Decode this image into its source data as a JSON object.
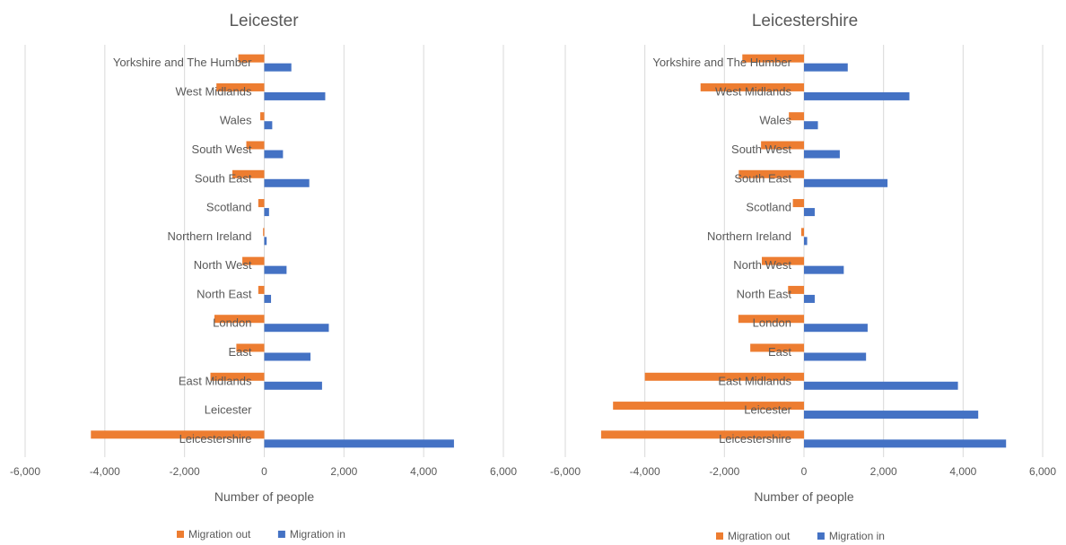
{
  "chart_data": [
    {
      "type": "bar",
      "orientation": "horizontal",
      "title": "Leicester",
      "xlabel": "Number of people",
      "ylabel": "",
      "xlim": [
        -6000,
        6000
      ],
      "xticks": [
        -6000,
        -4000,
        -2000,
        0,
        2000,
        4000,
        6000
      ],
      "xtick_labels": [
        "-6,000",
        "-4,000",
        "-2,000",
        "0",
        "2,000",
        "4,000",
        "6,000"
      ],
      "grid": true,
      "legend_position": "bottom",
      "categories": [
        "Yorkshire and The Humber",
        "West Midlands",
        "Wales",
        "South West",
        "South East",
        "Scotland",
        "Northern Ireland",
        "North West",
        "North East",
        "London",
        "East",
        "East Midlands",
        "Leicester",
        "Leicestershire"
      ],
      "series": [
        {
          "name": "Migration out",
          "color": "#ED7D31",
          "values": [
            -650,
            -1200,
            -100,
            -450,
            -800,
            -150,
            -30,
            -550,
            -150,
            -1250,
            -700,
            -1350,
            0,
            -4350
          ]
        },
        {
          "name": "Migration in",
          "color": "#4472C4",
          "values": [
            680,
            1530,
            200,
            470,
            1130,
            120,
            60,
            560,
            170,
            1620,
            1160,
            1450,
            0,
            4760
          ]
        }
      ]
    },
    {
      "type": "bar",
      "orientation": "horizontal",
      "title": "Leicestershire",
      "xlabel": "Number of people",
      "ylabel": "",
      "xlim": [
        -6000,
        6000
      ],
      "xticks": [
        -6000,
        -4000,
        -2000,
        0,
        2000,
        4000,
        6000
      ],
      "xtick_labels": [
        "-6,000",
        "-4,000",
        "-2,000",
        "0",
        "2,000",
        "4,000",
        "6,000"
      ],
      "grid": true,
      "legend_position": "bottom",
      "categories": [
        "Yorkshire and The Humber",
        "West Midlands",
        "Wales",
        "South West",
        "South East",
        "Scotland",
        "Northern Ireland",
        "North West",
        "North East",
        "London",
        "East",
        "East Midlands",
        "Leicester",
        "Leicestershire"
      ],
      "series": [
        {
          "name": "Migration out",
          "color": "#ED7D31",
          "values": [
            -1550,
            -2600,
            -380,
            -1080,
            -1640,
            -280,
            -70,
            -1060,
            -400,
            -1650,
            -1350,
            -4000,
            -4800,
            -5100
          ]
        },
        {
          "name": "Migration in",
          "color": "#4472C4",
          "values": [
            1100,
            2650,
            350,
            900,
            2100,
            270,
            80,
            1000,
            270,
            1600,
            1560,
            3870,
            4380,
            5080
          ]
        }
      ]
    }
  ]
}
